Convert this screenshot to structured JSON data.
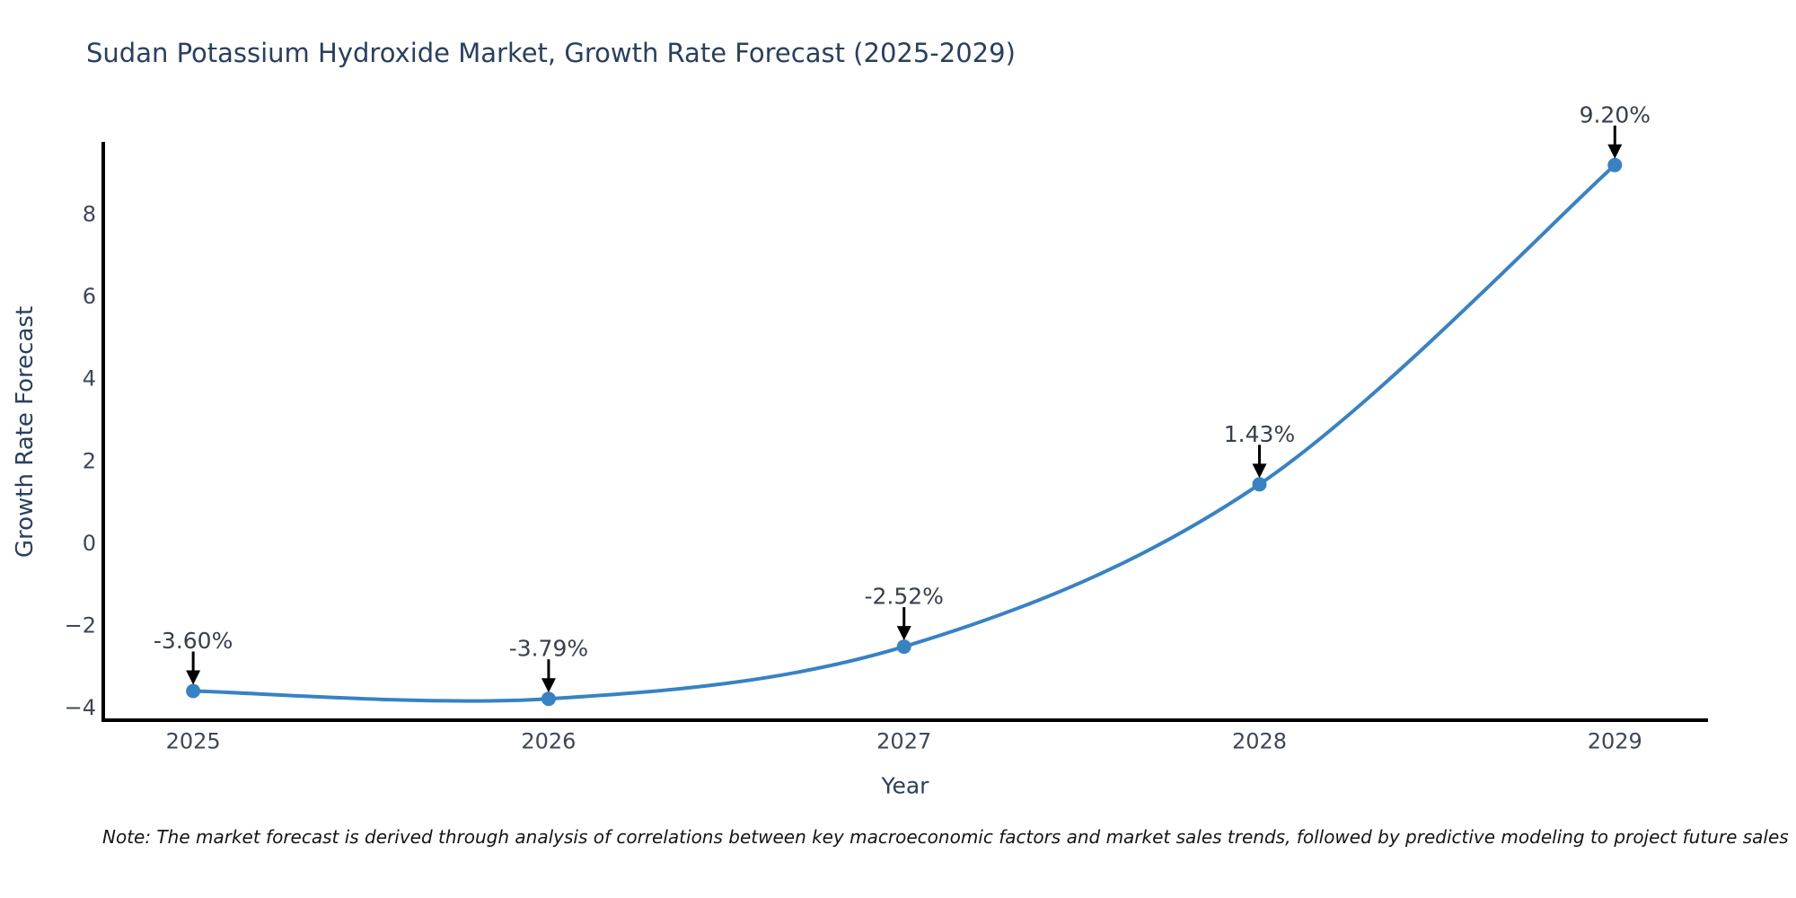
{
  "figure": {
    "title": "Sudan Potassium Hydroxide Market, Growth Rate Forecast (2025-2029)",
    "note": "Note: The market forecast is derived through analysis of correlations between key macroeconomic factors and market sales trends, followed by predictive modeling to project future sales"
  },
  "chart_data": {
    "type": "line",
    "title": "Sudan Potassium Hydroxide Market, Growth Rate Forecast (2025-2029)",
    "xlabel": "Year",
    "ylabel": "Growth Rate Forecast",
    "x": [
      2025,
      2026,
      2027,
      2028,
      2029
    ],
    "series": [
      {
        "name": "Growth Rate Forecast",
        "values": [
          -3.6,
          -3.79,
          -2.52,
          1.43,
          9.2
        ]
      }
    ],
    "point_labels": [
      "-3.60%",
      "-3.79%",
      "-2.52%",
      "1.43%",
      "9.20%"
    ],
    "yticks": [
      -4,
      -2,
      0,
      2,
      4,
      6,
      8
    ],
    "xlim": [
      2024.747,
      2029.257
    ],
    "ylim": [
      -4.31,
      9.72
    ],
    "grid": false,
    "legend_position": "none",
    "curve": "spline",
    "line_color": "#3882c4",
    "marker_color": "#3882c4",
    "axis_color": "#000000",
    "annotation_arrow_color": "#000000",
    "annotation_text_color": "#38404c",
    "tick_text_color": "#3d4758",
    "title_text_color": "#2a3f5f"
  }
}
